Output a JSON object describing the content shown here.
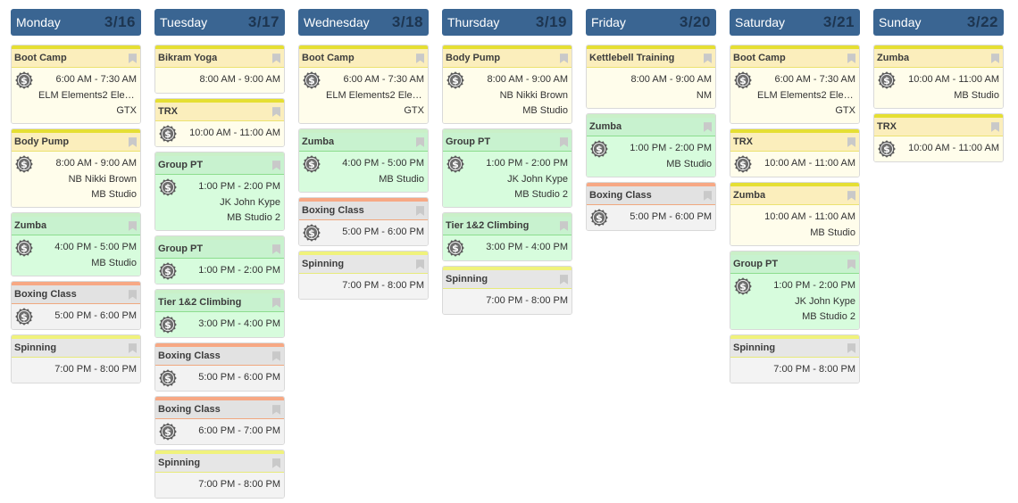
{
  "colors": {
    "header_bg": "#3a6592",
    "yellow": "#fbeebc",
    "green": "#c8f2cf",
    "orange_accent": "#f7a884",
    "gray": "#e6e6e6"
  },
  "icons": {
    "price": "dollar-badge-icon",
    "bookmark": "bookmark-icon"
  },
  "days": [
    {
      "name": "Monday",
      "date": "3/16",
      "classes": [
        {
          "title": "Boot Camp",
          "theme": "yellow",
          "paid": true,
          "time": "6:00 AM - 7:30 AM",
          "instructor": "ELM Elements2 Elemen…",
          "location": "GTX"
        },
        {
          "title": "Body Pump",
          "theme": "yellow",
          "paid": true,
          "time": "8:00 AM - 9:00 AM",
          "instructor": "NB Nikki Brown",
          "location": "MB Studio"
        },
        {
          "title": "Zumba",
          "theme": "green",
          "paid": true,
          "time": "4:00 PM - 5:00 PM",
          "location": "MB Studio"
        },
        {
          "title": "Boxing Class",
          "theme": "orange",
          "paid": true,
          "time": "5:00 PM - 6:00 PM"
        },
        {
          "title": "Spinning",
          "theme": "gray",
          "paid": false,
          "time": "7:00 PM - 8:00 PM"
        }
      ]
    },
    {
      "name": "Tuesday",
      "date": "3/17",
      "classes": [
        {
          "title": "Bikram Yoga",
          "theme": "yellow",
          "paid": false,
          "time": "8:00 AM - 9:00 AM"
        },
        {
          "title": "TRX",
          "theme": "yellow",
          "paid": true,
          "time": "10:00 AM - 11:00 AM"
        },
        {
          "title": "Group PT",
          "theme": "green",
          "paid": true,
          "time": "1:00 PM - 2:00 PM",
          "instructor": "JK John Kype",
          "location": "MB Studio 2"
        },
        {
          "title": "Group PT",
          "theme": "green",
          "paid": true,
          "time": "1:00 PM - 2:00 PM"
        },
        {
          "title": "Tier 1&2 Climbing",
          "theme": "green",
          "paid": true,
          "time": "3:00 PM - 4:00 PM"
        },
        {
          "title": "Boxing Class",
          "theme": "orange",
          "paid": true,
          "time": "5:00 PM - 6:00 PM"
        },
        {
          "title": "Boxing Class",
          "theme": "orange",
          "paid": true,
          "time": "6:00 PM - 7:00 PM"
        },
        {
          "title": "Spinning",
          "theme": "gray",
          "paid": false,
          "time": "7:00 PM - 8:00 PM"
        }
      ]
    },
    {
      "name": "Wednesday",
      "date": "3/18",
      "classes": [
        {
          "title": "Boot Camp",
          "theme": "yellow",
          "paid": true,
          "time": "6:00 AM - 7:30 AM",
          "instructor": "ELM Elements2 Elemen…",
          "location": "GTX"
        },
        {
          "title": "Zumba",
          "theme": "green",
          "paid": true,
          "time": "4:00 PM - 5:00 PM",
          "location": "MB Studio"
        },
        {
          "title": "Boxing Class",
          "theme": "orange",
          "paid": true,
          "time": "5:00 PM - 6:00 PM"
        },
        {
          "title": "Spinning",
          "theme": "gray",
          "paid": false,
          "time": "7:00 PM - 8:00 PM"
        }
      ]
    },
    {
      "name": "Thursday",
      "date": "3/19",
      "classes": [
        {
          "title": "Body Pump",
          "theme": "yellow",
          "paid": true,
          "time": "8:00 AM - 9:00 AM",
          "instructor": "NB Nikki Brown",
          "location": "MB Studio"
        },
        {
          "title": "Group PT",
          "theme": "green",
          "paid": true,
          "time": "1:00 PM - 2:00 PM",
          "instructor": "JK John Kype",
          "location": "MB Studio 2"
        },
        {
          "title": "Tier 1&2 Climbing",
          "theme": "green",
          "paid": true,
          "time": "3:00 PM - 4:00 PM"
        },
        {
          "title": "Spinning",
          "theme": "gray",
          "paid": false,
          "time": "7:00 PM - 8:00 PM"
        }
      ]
    },
    {
      "name": "Friday",
      "date": "3/20",
      "classes": [
        {
          "title": "Kettlebell Training",
          "theme": "yellow",
          "paid": false,
          "time": "8:00 AM - 9:00 AM",
          "instructor": "NM"
        },
        {
          "title": "Zumba",
          "theme": "green",
          "paid": true,
          "time": "1:00 PM - 2:00 PM",
          "location": "MB Studio"
        },
        {
          "title": "Boxing Class",
          "theme": "orange",
          "paid": true,
          "time": "5:00 PM - 6:00 PM"
        }
      ]
    },
    {
      "name": "Saturday",
      "date": "3/21",
      "classes": [
        {
          "title": "Boot Camp",
          "theme": "yellow",
          "paid": true,
          "time": "6:00 AM - 7:30 AM",
          "instructor": "ELM Elements2 Elemen…",
          "location": "GTX"
        },
        {
          "title": "TRX",
          "theme": "yellow",
          "paid": true,
          "time": "10:00 AM - 11:00 AM"
        },
        {
          "title": "Zumba",
          "theme": "yellow",
          "paid": false,
          "time": "10:00 AM - 11:00 AM",
          "location": "MB Studio"
        },
        {
          "title": "Group PT",
          "theme": "green",
          "paid": true,
          "time": "1:00 PM - 2:00 PM",
          "instructor": "JK John Kype",
          "location": "MB Studio 2"
        },
        {
          "title": "Spinning",
          "theme": "gray",
          "paid": false,
          "time": "7:00 PM - 8:00 PM"
        }
      ]
    },
    {
      "name": "Sunday",
      "date": "3/22",
      "classes": [
        {
          "title": "Zumba",
          "theme": "yellow",
          "paid": true,
          "time": "10:00 AM - 11:00 AM",
          "location": "MB Studio"
        },
        {
          "title": "TRX",
          "theme": "yellow",
          "paid": true,
          "time": "10:00 AM - 11:00 AM"
        }
      ]
    }
  ]
}
